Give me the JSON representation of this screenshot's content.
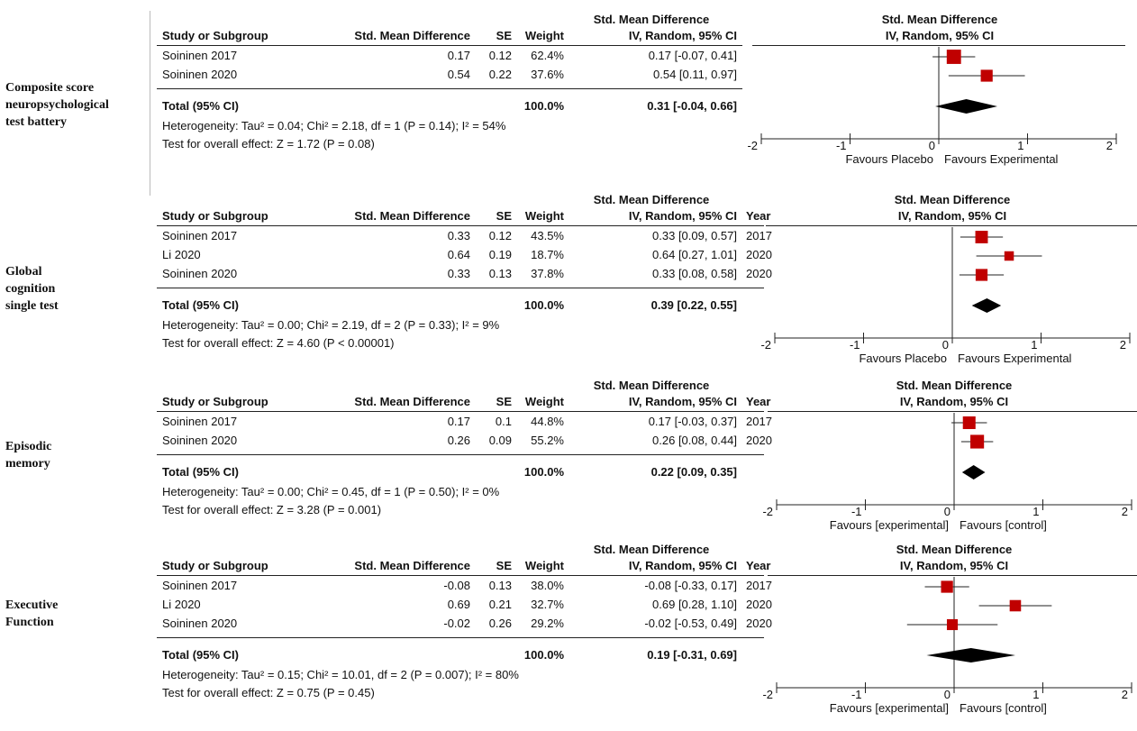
{
  "headers": {
    "study": "Study or Subgroup",
    "smd": "Std. Mean Difference",
    "se": "SE",
    "weight": "Weight",
    "ci_top": "Std. Mean Difference",
    "ci_bottom": "IV, Random, 95% CI",
    "year": "Year",
    "plot_top": "Std. Mean Difference",
    "plot_bottom": "IV, Random, 95% CI"
  },
  "chart_data": [
    {
      "type": "forest",
      "panel_label": [
        "Composite score",
        "neuropsychological",
        "test battery"
      ],
      "show_year": false,
      "studies": [
        {
          "name": "Soininen 2017",
          "smd": "0.17",
          "se": "0.12",
          "weight": "62.4%",
          "ci": "0.17 [-0.07, 0.41]",
          "year": "",
          "est": 0.17,
          "lo": -0.07,
          "hi": 0.41,
          "w": 62.4
        },
        {
          "name": "Soininen 2020",
          "smd": "0.54",
          "se": "0.22",
          "weight": "37.6%",
          "ci": "0.54 [0.11, 0.97]",
          "year": "",
          "est": 0.54,
          "lo": 0.11,
          "hi": 0.97,
          "w": 37.6
        }
      ],
      "total": {
        "label": "Total (95% CI)",
        "weight": "100.0%",
        "ci": "0.31 [-0.04, 0.66]",
        "est": 0.31,
        "lo": -0.04,
        "hi": 0.66
      },
      "heterogeneity": "Heterogeneity: Tau² = 0.04; Chi² = 2.18, df = 1 (P = 0.14); I² = 54%",
      "overall_effect": "Test for overall effect: Z = 1.72 (P = 0.08)",
      "xlim": [
        -2,
        2
      ],
      "ticks": [
        "-2",
        "-1",
        "0",
        "1",
        "2"
      ],
      "favours_left": "Favours Placebo",
      "favours_right": "Favours Experimental"
    },
    {
      "type": "forest",
      "panel_label": [
        "Global",
        "cognition",
        "single test"
      ],
      "show_year": true,
      "studies": [
        {
          "name": "Soininen 2017",
          "smd": "0.33",
          "se": "0.12",
          "weight": "43.5%",
          "ci": "0.33 [0.09, 0.57]",
          "year": "2017",
          "est": 0.33,
          "lo": 0.09,
          "hi": 0.57,
          "w": 43.5
        },
        {
          "name": "Li 2020",
          "smd": "0.64",
          "se": "0.19",
          "weight": "18.7%",
          "ci": "0.64 [0.27, 1.01]",
          "year": "2020",
          "est": 0.64,
          "lo": 0.27,
          "hi": 1.01,
          "w": 18.7
        },
        {
          "name": "Soininen 2020",
          "smd": "0.33",
          "se": "0.13",
          "weight": "37.8%",
          "ci": "0.33 [0.08, 0.58]",
          "year": "2020",
          "est": 0.33,
          "lo": 0.08,
          "hi": 0.58,
          "w": 37.8
        }
      ],
      "total": {
        "label": "Total (95% CI)",
        "weight": "100.0%",
        "ci": "0.39 [0.22, 0.55]",
        "est": 0.39,
        "lo": 0.22,
        "hi": 0.55
      },
      "heterogeneity": "Heterogeneity: Tau² = 0.00; Chi² = 2.19, df = 2 (P = 0.33); I² = 9%",
      "overall_effect": "Test for overall effect: Z = 4.60 (P < 0.00001)",
      "xlim": [
        -2,
        2
      ],
      "ticks": [
        "-2",
        "-1",
        "0",
        "1",
        "2"
      ],
      "favours_left": "Favours Placebo",
      "favours_right": "Favours Experimental"
    },
    {
      "type": "forest",
      "panel_label": [
        "Episodic",
        "memory"
      ],
      "show_year": true,
      "studies": [
        {
          "name": "Soininen 2017",
          "smd": "0.17",
          "se": "0.1",
          "weight": "44.8%",
          "ci": "0.17 [-0.03, 0.37]",
          "year": "2017",
          "est": 0.17,
          "lo": -0.03,
          "hi": 0.37,
          "w": 44.8
        },
        {
          "name": "Soininen 2020",
          "smd": "0.26",
          "se": "0.09",
          "weight": "55.2%",
          "ci": "0.26 [0.08, 0.44]",
          "year": "2020",
          "est": 0.26,
          "lo": 0.08,
          "hi": 0.44,
          "w": 55.2
        }
      ],
      "total": {
        "label": "Total (95% CI)",
        "weight": "100.0%",
        "ci": "0.22 [0.09, 0.35]",
        "est": 0.22,
        "lo": 0.09,
        "hi": 0.35
      },
      "heterogeneity": "Heterogeneity: Tau² = 0.00; Chi² = 0.45, df = 1 (P = 0.50); I² = 0%",
      "overall_effect": "Test for overall effect: Z = 3.28 (P = 0.001)",
      "xlim": [
        -2,
        2
      ],
      "ticks": [
        "-2",
        "-1",
        "0",
        "1",
        "2"
      ],
      "favours_left": "Favours [experimental]",
      "favours_right": "Favours [control]"
    },
    {
      "type": "forest",
      "panel_label": [
        "Executive",
        "Function"
      ],
      "show_year": true,
      "studies": [
        {
          "name": "Soininen 2017",
          "smd": "-0.08",
          "se": "0.13",
          "weight": "38.0%",
          "ci": "-0.08 [-0.33, 0.17]",
          "year": "2017",
          "est": -0.08,
          "lo": -0.33,
          "hi": 0.17,
          "w": 38.0
        },
        {
          "name": "Li 2020",
          "smd": "0.69",
          "se": "0.21",
          "weight": "32.7%",
          "ci": "0.69 [0.28, 1.10]",
          "year": "2020",
          "est": 0.69,
          "lo": 0.28,
          "hi": 1.1,
          "w": 32.7
        },
        {
          "name": "Soininen 2020",
          "smd": "-0.02",
          "se": "0.26",
          "weight": "29.2%",
          "ci": "-0.02 [-0.53, 0.49]",
          "year": "2020",
          "est": -0.02,
          "lo": -0.53,
          "hi": 0.49,
          "w": 29.2
        }
      ],
      "total": {
        "label": "Total (95% CI)",
        "weight": "100.0%",
        "ci": "0.19 [-0.31, 0.69]",
        "est": 0.19,
        "lo": -0.31,
        "hi": 0.69
      },
      "heterogeneity": "Heterogeneity: Tau² = 0.15; Chi² = 10.01, df = 2 (P = 0.007); I² = 80%",
      "overall_effect": "Test for overall effect: Z = 0.75 (P = 0.45)",
      "xlim": [
        -2,
        2
      ],
      "ticks": [
        "-2",
        "-1",
        "0",
        "1",
        "2"
      ],
      "favours_left": "Favours [experimental]",
      "favours_right": "Favours [control]"
    }
  ],
  "colors": {
    "marker": "#c00000",
    "diamond": "#000000",
    "text": "#111111"
  }
}
